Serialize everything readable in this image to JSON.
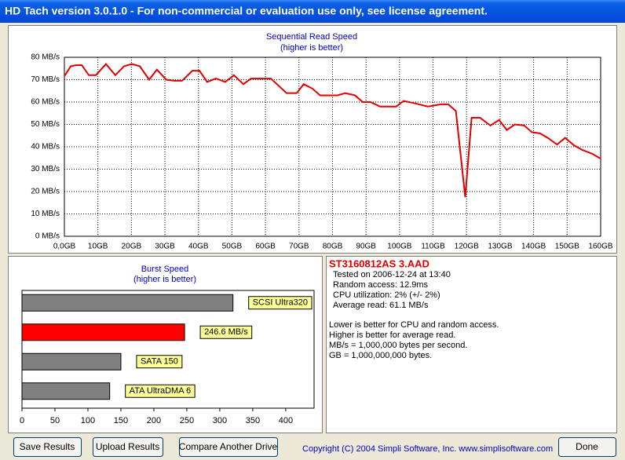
{
  "window": {
    "title": "HD Tach version 3.0.1.0  - For non-commercial or evaluation use only, see license agreement."
  },
  "chart_data": [
    {
      "type": "line",
      "title": "Sequential Read Speed",
      "subtitle": "(higher is better)",
      "x": [
        0,
        1.9,
        3.5,
        5.2,
        7.3,
        9.4,
        12.4,
        15.2,
        17.8,
        20.1,
        22.5,
        25.3,
        27.6,
        30.4,
        32.8,
        35.1,
        38.2,
        40.3,
        42.6,
        45.2,
        48,
        50.6,
        53.4,
        55.7,
        61.6,
        66.3,
        69.3,
        71.4,
        74,
        76.3,
        81.5,
        83.8,
        86.7,
        89,
        91.3,
        94.2,
        99,
        101.2,
        104.4,
        108.4,
        112.4,
        114.5,
        116.8,
        119.6,
        121.5,
        124,
        127.1,
        129.7,
        132,
        134.4,
        137.2,
        139.5,
        141.9,
        144.2,
        147,
        149.4,
        152,
        154.5,
        157.6,
        160
      ],
      "values": [
        71.6,
        76,
        76.5,
        76.5,
        72,
        72,
        77,
        72,
        76,
        77,
        76,
        70,
        74.5,
        70,
        69.5,
        69.5,
        74,
        74,
        69,
        70.5,
        69,
        72,
        68,
        70.5,
        70.5,
        64,
        64,
        68,
        66,
        63,
        63,
        64,
        63,
        60,
        60,
        58,
        58,
        60.5,
        59.5,
        58,
        59,
        59,
        56,
        17.5,
        53,
        53,
        49.5,
        52,
        47.5,
        50,
        49.5,
        46.5,
        46,
        44,
        41,
        44,
        40.7,
        38.6,
        36.8,
        34.7
      ],
      "color": "#e00000",
      "xlim": [
        0,
        160
      ],
      "ylim": [
        0,
        80
      ],
      "xticks": [
        {
          "value": 0,
          "label": "0,0GB"
        },
        {
          "value": 10,
          "label": "10GB"
        },
        {
          "value": 20,
          "label": "20GB"
        },
        {
          "value": 30,
          "label": "30GB"
        },
        {
          "value": 40,
          "label": "40GB"
        },
        {
          "value": 50,
          "label": "50GB"
        },
        {
          "value": 60,
          "label": "60GB"
        },
        {
          "value": 70,
          "label": "70GB"
        },
        {
          "value": 80,
          "label": "80GB"
        },
        {
          "value": 90,
          "label": "90GB"
        },
        {
          "value": 100,
          "label": "100GB"
        },
        {
          "value": 110,
          "label": "110GB"
        },
        {
          "value": 120,
          "label": "120GB"
        },
        {
          "value": 130,
          "label": "130GB"
        },
        {
          "value": 140,
          "label": "140GB"
        },
        {
          "value": 150,
          "label": "150GB"
        },
        {
          "value": 160,
          "label": "160GB"
        }
      ],
      "yticks": [
        {
          "value": 0,
          "label": "0 MB/s"
        },
        {
          "value": 10,
          "label": "10 MB/s"
        },
        {
          "value": 20,
          "label": "20 MB/s"
        },
        {
          "value": 30,
          "label": "30 MB/s"
        },
        {
          "value": 40,
          "label": "40 MB/s"
        },
        {
          "value": 50,
          "label": "50 MB/s"
        },
        {
          "value": 60,
          "label": "60 MB/s"
        },
        {
          "value": 70,
          "label": "70 MB/s"
        },
        {
          "value": 80,
          "label": "80 MB/s"
        }
      ],
      "grid": true
    },
    {
      "type": "bar",
      "orientation": "horizontal",
      "title": "Burst Speed",
      "subtitle": "(higher is better)",
      "categories": [
        "SCSI Ultra320",
        null,
        "SATA 150",
        "ATA UltraDMA 6"
      ],
      "values": [
        320,
        246.6,
        150,
        133
      ],
      "value_labels": [
        null,
        "246.6 MB/s",
        null,
        null
      ],
      "colors": [
        "#808080",
        "#ff0000",
        "#808080",
        "#808080"
      ],
      "xlim": [
        0,
        443
      ],
      "xticks": [
        0,
        50,
        100,
        150,
        200,
        250,
        300,
        350,
        400
      ],
      "grid": false
    }
  ],
  "info": {
    "drive": "ST3160812AS 3.AAD",
    "details": [
      "Tested on 2006-12-24 at 13:40",
      "Random access: 12.9ms",
      "CPU utilization: 2% (+/- 2%)",
      "Average read: 61.1 MB/s"
    ],
    "notes": [
      "Lower is better for CPU and random access.",
      "Higher is better for average read.",
      "MB/s = 1,000,000 bytes per second.",
      "GB = 1,000,000,000 bytes."
    ]
  },
  "buttons": [
    "Save Results",
    "Upload Results",
    "Compare Another Drive",
    "Done"
  ],
  "copyright": "Copyright (C) 2004 Simpli Software, Inc. www.simplisoftware.com"
}
